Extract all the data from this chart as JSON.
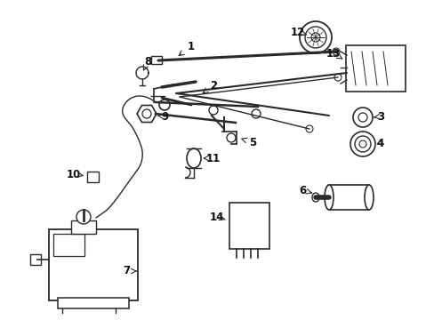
{
  "background_color": "#ffffff",
  "line_color": "#2a2a2a",
  "text_color": "#111111",
  "fig_width": 4.89,
  "fig_height": 3.6,
  "dpi": 100
}
